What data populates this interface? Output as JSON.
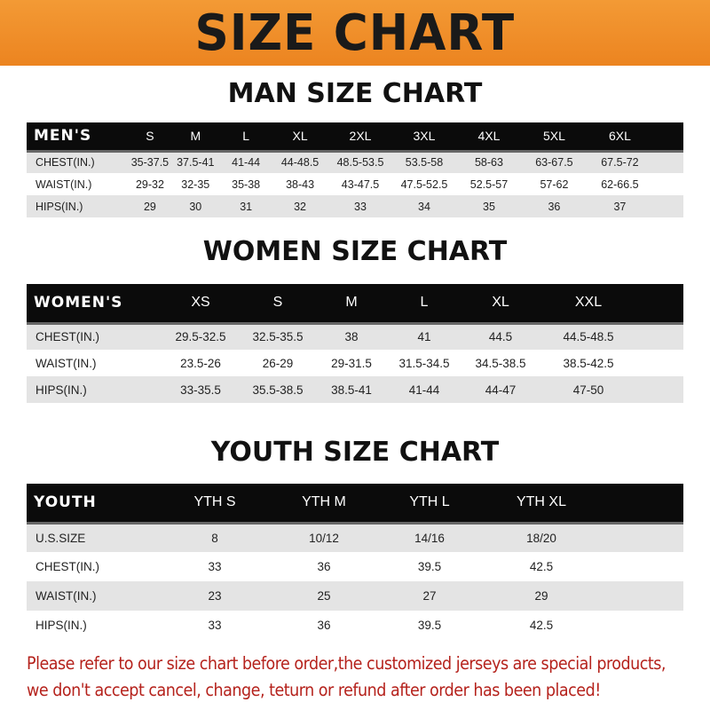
{
  "banner_title": "SIZE CHART",
  "men": {
    "title": "MAN SIZE CHART",
    "header": [
      "MEN'S",
      "S",
      "M",
      "L",
      "XL",
      "2XL",
      "3XL",
      "4XL",
      "5XL",
      "6XL"
    ],
    "rows": [
      [
        "CHEST(IN.)",
        "35-37.5",
        "37.5-41",
        "41-44",
        "44-48.5",
        "48.5-53.5",
        "53.5-58",
        "58-63",
        "63-67.5",
        "67.5-72"
      ],
      [
        "WAIST(IN.)",
        "29-32",
        "32-35",
        "35-38",
        "38-43",
        "43-47.5",
        "47.5-52.5",
        "52.5-57",
        "57-62",
        "62-66.5"
      ],
      [
        "HIPS(IN.)",
        "29",
        "30",
        "31",
        "32",
        "33",
        "34",
        "35",
        "36",
        "37"
      ]
    ]
  },
  "women": {
    "title": "WOMEN SIZE CHART",
    "header": [
      "WOMEN'S",
      "XS",
      "S",
      "M",
      "L",
      "XL",
      "XXL"
    ],
    "rows": [
      [
        "CHEST(IN.)",
        "29.5-32.5",
        "32.5-35.5",
        "38",
        "41",
        "44.5",
        "44.5-48.5"
      ],
      [
        "WAIST(IN.)",
        "23.5-26",
        "26-29",
        "29-31.5",
        "31.5-34.5",
        "34.5-38.5",
        "38.5-42.5"
      ],
      [
        "HIPS(IN.)",
        "33-35.5",
        "35.5-38.5",
        "38.5-41",
        "41-44",
        "44-47",
        "47-50"
      ]
    ]
  },
  "youth": {
    "title": "YOUTH SIZE CHART",
    "header": [
      "YOUTH",
      "YTH S",
      "YTH M",
      "YTH L",
      "YTH XL"
    ],
    "rows": [
      [
        "U.S.SIZE",
        "8",
        "10/12",
        "14/16",
        "18/20"
      ],
      [
        "CHEST(IN.)",
        "33",
        "36",
        "39.5",
        "42.5"
      ],
      [
        "WAIST(IN.)",
        "23",
        "25",
        "27",
        "29"
      ],
      [
        "HIPS(IN.)",
        "33",
        "36",
        "39.5",
        "42.5"
      ]
    ]
  },
  "note": [
    "Please refer to our size chart before order,the customized jerseys are special products,",
    "we don't accept cancel, change, teturn or refund after order has been placed!"
  ],
  "colors": {
    "banner": "#ee8a25",
    "header_bg": "#0b0b0b",
    "row_alt": "#e4e4e4",
    "note": "#b5221c"
  }
}
